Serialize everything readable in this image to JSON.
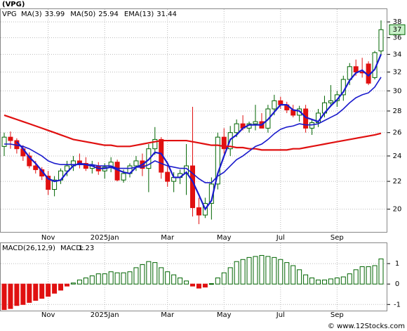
{
  "chart_data": [
    {
      "type": "candlestick",
      "title": "(VPG)",
      "symbol": "VPG",
      "categories": [
        null,
        null,
        null,
        null,
        null,
        null,
        null,
        "Nov",
        null,
        null,
        null,
        null,
        null,
        null,
        null,
        null,
        "2025Jan",
        null,
        null,
        null,
        null,
        null,
        null,
        null,
        null,
        null,
        "Mar",
        null,
        null,
        null,
        null,
        null,
        null,
        null,
        null,
        "May",
        null,
        null,
        null,
        null,
        null,
        null,
        null,
        null,
        "Jul",
        null,
        null,
        null,
        null,
        null,
        null,
        null,
        null,
        "Sep",
        null,
        null,
        null,
        null,
        null,
        null,
        null
      ],
      "ohlc": [
        [
          24.8,
          26.0,
          24.0,
          25.6
        ],
        [
          25.6,
          26.1,
          24.6,
          25.3
        ],
        [
          25.3,
          25.5,
          24.2,
          24.6
        ],
        [
          24.6,
          24.9,
          23.6,
          24.0
        ],
        [
          24.0,
          24.3,
          23.0,
          23.2
        ],
        [
          23.2,
          23.6,
          22.6,
          22.9
        ],
        [
          22.9,
          23.1,
          22.1,
          22.4
        ],
        [
          22.4,
          22.8,
          21.0,
          21.4
        ],
        [
          21.4,
          22.4,
          20.9,
          22.1
        ],
        [
          22.1,
          23.0,
          21.8,
          22.8
        ],
        [
          22.8,
          23.6,
          22.4,
          23.2
        ],
        [
          23.2,
          24.0,
          22.8,
          23.6
        ],
        [
          23.6,
          24.2,
          23.0,
          23.4
        ],
        [
          23.4,
          23.9,
          22.8,
          23.0
        ],
        [
          23.0,
          23.6,
          22.6,
          23.2
        ],
        [
          23.2,
          23.5,
          22.5,
          22.8
        ],
        [
          22.8,
          23.4,
          22.2,
          23.1
        ],
        [
          23.1,
          23.9,
          22.7,
          23.5
        ],
        [
          23.5,
          23.7,
          22.0,
          22.1
        ],
        [
          22.1,
          22.9,
          21.9,
          22.6
        ],
        [
          22.6,
          23.4,
          22.3,
          23.2
        ],
        [
          23.2,
          24.0,
          22.8,
          23.6
        ],
        [
          23.6,
          24.2,
          22.4,
          23.0
        ],
        [
          23.0,
          25.0,
          21.2,
          24.6
        ],
        [
          24.6,
          26.5,
          24.1,
          25.4
        ],
        [
          25.4,
          25.6,
          22.2,
          22.7
        ],
        [
          22.7,
          23.2,
          21.6,
          22.0
        ],
        [
          22.0,
          22.7,
          21.2,
          22.3
        ],
        [
          22.3,
          22.9,
          21.8,
          22.6
        ],
        [
          22.6,
          25.0,
          21.0,
          23.2
        ],
        [
          23.2,
          28.4,
          19.5,
          20.1
        ],
        [
          20.1,
          20.8,
          19.0,
          19.6
        ],
        [
          19.6,
          20.8,
          19.4,
          20.4
        ],
        [
          20.4,
          22.3,
          19.3,
          21.8
        ],
        [
          21.8,
          26.0,
          21.4,
          25.6
        ],
        [
          25.6,
          26.4,
          24.2,
          24.6
        ],
        [
          24.6,
          26.6,
          24.0,
          26.0
        ],
        [
          26.0,
          27.2,
          25.6,
          26.8
        ],
        [
          26.8,
          27.6,
          26.2,
          26.4
        ],
        [
          26.4,
          27.0,
          26.0,
          26.8
        ],
        [
          26.8,
          28.6,
          26.2,
          27.0
        ],
        [
          27.0,
          27.8,
          26.4,
          26.4
        ],
        [
          26.4,
          28.6,
          26.0,
          28.2
        ],
        [
          28.2,
          29.6,
          27.6,
          29.0
        ],
        [
          29.0,
          29.4,
          28.2,
          28.6
        ],
        [
          28.6,
          28.9,
          27.8,
          28.1
        ],
        [
          28.1,
          28.6,
          27.4,
          27.6
        ],
        [
          27.6,
          28.5,
          27.0,
          28.2
        ],
        [
          28.2,
          28.6,
          26.0,
          26.4
        ],
        [
          26.4,
          27.2,
          25.8,
          26.9
        ],
        [
          26.9,
          28.2,
          26.5,
          27.8
        ],
        [
          27.8,
          29.5,
          27.4,
          28.8
        ],
        [
          28.8,
          30.6,
          28.4,
          29.0
        ],
        [
          29.0,
          30.0,
          28.4,
          29.6
        ],
        [
          29.6,
          31.6,
          29.0,
          31.2
        ],
        [
          31.2,
          33.0,
          30.6,
          32.6
        ],
        [
          32.6,
          33.4,
          31.6,
          32.0
        ],
        [
          32.0,
          33.6,
          31.4,
          31.9
        ],
        [
          32.9,
          33.2,
          30.6,
          30.8
        ],
        [
          31.4,
          34.4,
          31.2,
          34.2
        ],
        [
          34.4,
          38.2,
          34.0,
          37
        ]
      ],
      "up_color": "#006400",
      "down_color": "#e01010",
      "series": [
        {
          "name": "MA(3)",
          "current": 33.99,
          "color": "#1a1acc",
          "width": 2.2,
          "values": [
            null,
            null,
            25.2,
            24.6,
            23.9,
            23.4,
            22.8,
            22.2,
            22.0,
            22.1,
            22.7,
            23.2,
            23.4,
            23.3,
            23.2,
            23.0,
            23.0,
            23.1,
            22.9,
            22.7,
            22.6,
            23.1,
            23.3,
            23.7,
            24.3,
            24.2,
            23.4,
            22.3,
            22.3,
            22.7,
            22.0,
            21.0,
            20.0,
            20.6,
            22.6,
            24.0,
            25.4,
            25.8,
            26.4,
            26.7,
            26.7,
            26.7,
            27.2,
            27.9,
            28.6,
            28.6,
            28.1,
            28.0,
            27.4,
            27.2,
            27.0,
            27.8,
            28.5,
            29.1,
            29.9,
            31.1,
            31.9,
            32.2,
            31.6,
            32.3,
            34.0
          ]
        },
        {
          "name": "MA(50)",
          "current": 25.94,
          "color": "#e01010",
          "width": 2.2,
          "values": [
            27.6,
            27.4,
            27.2,
            27.0,
            26.8,
            26.6,
            26.4,
            26.2,
            26.0,
            25.8,
            25.6,
            25.4,
            25.3,
            25.2,
            25.1,
            25.0,
            24.9,
            24.9,
            24.8,
            24.8,
            24.8,
            24.9,
            25.0,
            25.1,
            25.2,
            25.3,
            25.3,
            25.3,
            25.3,
            25.3,
            25.2,
            25.1,
            25.0,
            24.9,
            24.9,
            24.8,
            24.8,
            24.7,
            24.7,
            24.6,
            24.6,
            24.5,
            24.5,
            24.5,
            24.5,
            24.5,
            24.6,
            24.6,
            24.7,
            24.8,
            24.9,
            25.0,
            25.1,
            25.2,
            25.3,
            25.4,
            25.5,
            25.6,
            25.7,
            25.8,
            25.94
          ]
        },
        {
          "name": "EMA(13)",
          "current": 31.44,
          "color": "#1a1acc",
          "width": 1.6,
          "values": [
            25.0,
            25.0,
            24.9,
            24.8,
            24.6,
            24.3,
            24.0,
            23.6,
            23.4,
            23.3,
            23.3,
            23.3,
            23.3,
            23.3,
            23.3,
            23.2,
            23.2,
            23.2,
            23.0,
            23.0,
            23.0,
            23.1,
            23.1,
            23.3,
            23.6,
            23.4,
            23.2,
            23.1,
            23.0,
            23.0,
            22.6,
            22.2,
            21.9,
            21.9,
            22.4,
            22.7,
            23.2,
            23.7,
            24.0,
            24.4,
            24.8,
            25.0,
            25.4,
            25.9,
            26.3,
            26.5,
            26.6,
            26.8,
            26.7,
            26.7,
            26.8,
            27.1,
            27.4,
            27.7,
            28.2,
            28.8,
            29.3,
            29.6,
            29.8,
            30.4,
            31.44
          ]
        }
      ],
      "ylim": [
        18.5,
        39.7
      ],
      "yticks": [
        20,
        22,
        24,
        26,
        28,
        30,
        32,
        34,
        36,
        38
      ],
      "log_scale": true,
      "grid": true
    },
    {
      "type": "bar",
      "title": "MACD(26,12,9)",
      "pos_color": "#006400",
      "neg_color": "#e01010",
      "series": [
        {
          "name": "MACD:",
          "current": 1.23,
          "color": "#1a1acc",
          "values": [
            -1.25,
            -1.2,
            -1.05,
            -1.0,
            -0.9,
            -0.8,
            -0.7,
            -0.6,
            -0.45,
            -0.3,
            -0.1,
            0.05,
            0.2,
            0.3,
            0.4,
            0.5,
            0.5,
            0.6,
            0.55,
            0.55,
            0.6,
            0.8,
            0.95,
            1.1,
            1.05,
            0.8,
            0.6,
            0.45,
            0.3,
            0.15,
            -0.1,
            -0.2,
            -0.15,
            0.02,
            0.3,
            0.55,
            0.8,
            1.1,
            1.2,
            1.3,
            1.35,
            1.4,
            1.35,
            1.3,
            1.2,
            1.05,
            0.9,
            0.7,
            0.45,
            0.3,
            0.2,
            0.2,
            0.25,
            0.3,
            0.35,
            0.5,
            0.7,
            0.85,
            0.85,
            0.9,
            1.23
          ]
        }
      ],
      "ylim": [
        -1.3,
        2.0
      ],
      "yticks": [
        -1,
        0,
        1
      ],
      "grid": true
    }
  ],
  "footer": "© www.12Stocks.com"
}
